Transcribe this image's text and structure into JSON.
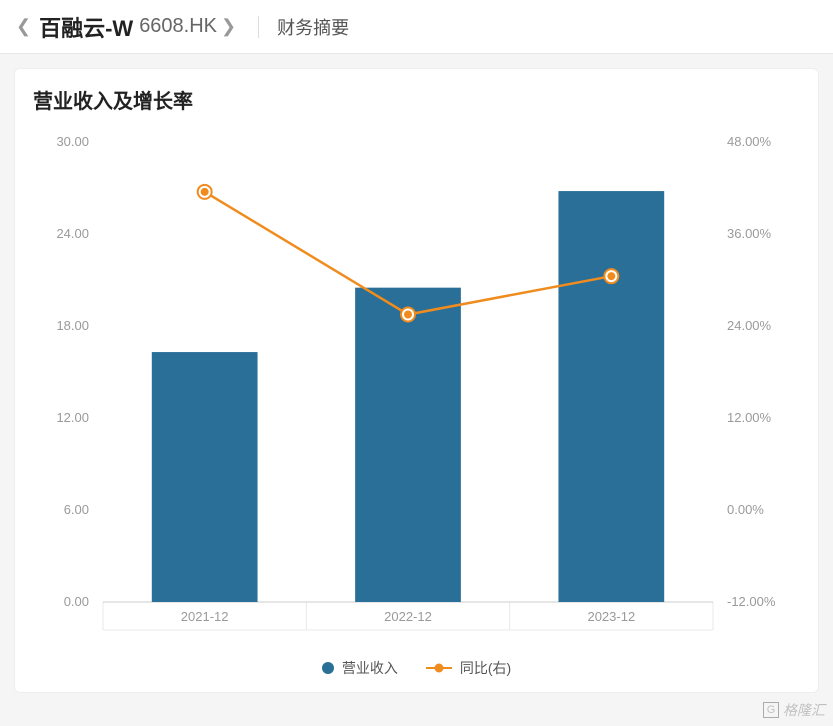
{
  "breadcrumb": {
    "stock_name": "百融云-W",
    "stock_code": "6608.HK",
    "section": "财务摘要"
  },
  "card": {
    "title": "营业收入及增长率"
  },
  "chart": {
    "type": "bar+line",
    "categories": [
      "2021-12",
      "2022-12",
      "2023-12"
    ],
    "left_axis": {
      "min": 0.0,
      "max": 30.0,
      "step": 6.0,
      "ticks": [
        "0.00",
        "6.00",
        "12.00",
        "18.00",
        "24.00",
        "30.00"
      ]
    },
    "right_axis": {
      "min": -12.0,
      "max": 48.0,
      "step": 12.0,
      "ticks": [
        "-12.00%",
        "0.00%",
        "12.00%",
        "24.00%",
        "36.00%",
        "48.00%"
      ]
    },
    "bars": {
      "label": "营业收入",
      "color": "#2a6f97",
      "values": [
        16.3,
        20.5,
        26.8
      ],
      "bar_width_ratio": 0.52
    },
    "line": {
      "label": "同比(右)",
      "color": "#f08c1e",
      "values": [
        41.5,
        25.5,
        30.5
      ],
      "marker_radius": 5,
      "line_width": 2.5
    },
    "plot": {
      "background": "#ffffff",
      "grid_color": "#e8e8e8",
      "cat_separator_color": "#e8e8e8",
      "axis_baseline_color": "#cccccc",
      "axis_text_color": "#9a9a9a",
      "axis_fontsize": 13
    }
  },
  "legend": {
    "bar_label": "营业收入",
    "line_label": "同比(右)"
  },
  "watermark": "格隆汇"
}
